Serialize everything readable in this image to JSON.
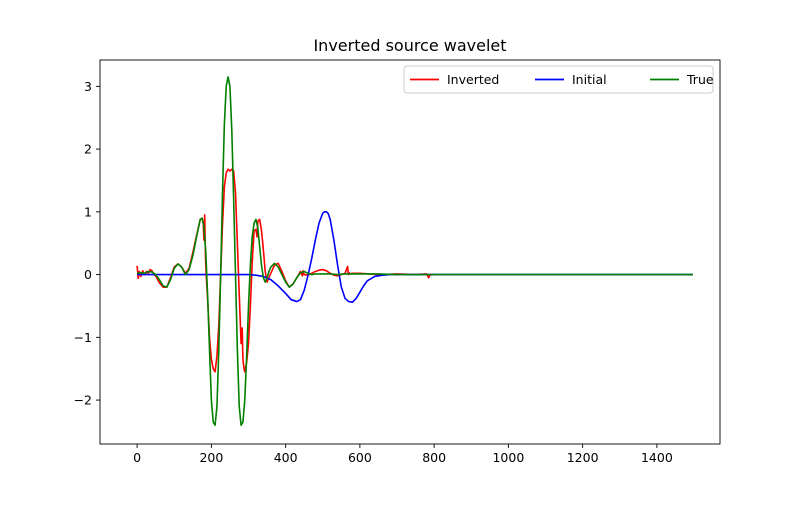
{
  "chart_data": {
    "type": "line",
    "title": "Inverted source wavelet",
    "xlabel": "",
    "ylabel": "",
    "xlim": [
      -100,
      1570
    ],
    "ylim": [
      -2.7,
      3.42
    ],
    "xticks": [
      0,
      200,
      400,
      600,
      800,
      1000,
      1200,
      1400
    ],
    "xtick_labels": [
      "0",
      "200",
      "400",
      "600",
      "800",
      "1000",
      "1200",
      "1400"
    ],
    "yticks": [
      -2,
      -1,
      0,
      1,
      2,
      3
    ],
    "ytick_labels": [
      "−2",
      "−1",
      "0",
      "1",
      "2",
      "3"
    ],
    "grid": false,
    "legend": {
      "position": "top-right",
      "columns": 3
    },
    "series": [
      {
        "name": "Inverted",
        "color": "#ff0000",
        "x": [
          0,
          3,
          6,
          10,
          15,
          20,
          25,
          30,
          35,
          40,
          45,
          50,
          60,
          70,
          80,
          90,
          100,
          110,
          120,
          130,
          140,
          150,
          160,
          170,
          175,
          178,
          180,
          182,
          184,
          186,
          190,
          195,
          200,
          205,
          210,
          215,
          220,
          225,
          230,
          235,
          240,
          245,
          250,
          255,
          260,
          265,
          270,
          275,
          280,
          283,
          285,
          288,
          290,
          295,
          300,
          305,
          310,
          315,
          320,
          323,
          325,
          330,
          335,
          340,
          345,
          350,
          360,
          370,
          380,
          390,
          400,
          410,
          420,
          430,
          440,
          445,
          447,
          450,
          460,
          470,
          480,
          490,
          500,
          510,
          520,
          530,
          540,
          550,
          560,
          567,
          569,
          571,
          573,
          580,
          600,
          650,
          700,
          750,
          780,
          785,
          790,
          800
        ],
        "y": [
          0.14,
          -0.06,
          0.05,
          -0.03,
          0.06,
          0.0,
          0.05,
          0.02,
          0.08,
          0.06,
          0.0,
          -0.02,
          -0.13,
          -0.2,
          -0.2,
          -0.05,
          0.12,
          0.17,
          0.12,
          0.02,
          0.1,
          0.35,
          0.62,
          0.88,
          0.9,
          0.82,
          0.55,
          0.95,
          0.3,
          0.0,
          -0.4,
          -1.0,
          -1.35,
          -1.5,
          -1.55,
          -1.3,
          -0.8,
          0.0,
          0.8,
          1.4,
          1.62,
          1.68,
          1.65,
          1.68,
          1.65,
          1.3,
          0.5,
          -0.3,
          -1.1,
          -0.85,
          -1.35,
          -1.5,
          -1.55,
          -1.4,
          -1.1,
          -0.5,
          0.2,
          0.7,
          0.72,
          0.6,
          0.85,
          0.88,
          0.7,
          0.4,
          0.05,
          -0.12,
          0.02,
          0.15,
          0.18,
          0.05,
          -0.1,
          -0.2,
          -0.15,
          -0.05,
          0.05,
          -0.02,
          0.06,
          0.0,
          -0.01,
          0.02,
          0.05,
          0.07,
          0.08,
          0.06,
          0.02,
          -0.01,
          -0.02,
          0.0,
          0.02,
          0.13,
          0.0,
          0.03,
          0.01,
          0.02,
          0.02,
          0.0,
          0.01,
          0.0,
          0.01,
          -0.05,
          0.0,
          0.0
        ]
      },
      {
        "name": "Initial",
        "color": "#0000ff",
        "x": [
          0,
          100,
          200,
          260,
          300,
          320,
          340,
          360,
          380,
          400,
          415,
          430,
          440,
          450,
          460,
          470,
          480,
          490,
          500,
          505,
          510,
          515,
          520,
          530,
          540,
          550,
          560,
          570,
          580,
          590,
          600,
          610,
          620,
          640,
          660,
          680,
          700,
          750,
          800,
          1000,
          1200,
          1497
        ],
        "y": [
          0,
          0,
          0,
          0,
          0,
          -0.01,
          -0.03,
          -0.08,
          -0.18,
          -0.3,
          -0.4,
          -0.43,
          -0.4,
          -0.25,
          -0.02,
          0.25,
          0.55,
          0.82,
          0.98,
          1.0,
          1.0,
          0.97,
          0.88,
          0.55,
          0.15,
          -0.2,
          -0.38,
          -0.43,
          -0.44,
          -0.38,
          -0.28,
          -0.18,
          -0.1,
          -0.03,
          -0.01,
          0,
          0,
          0,
          0,
          0,
          0,
          0
        ]
      },
      {
        "name": "True",
        "color": "#008000",
        "x": [
          0,
          10,
          20,
          30,
          40,
          50,
          60,
          70,
          80,
          90,
          100,
          110,
          120,
          130,
          140,
          150,
          160,
          170,
          175,
          180,
          185,
          190,
          195,
          200,
          205,
          210,
          215,
          220,
          225,
          230,
          235,
          240,
          245,
          250,
          255,
          260,
          265,
          270,
          275,
          280,
          285,
          290,
          295,
          300,
          305,
          310,
          315,
          320,
          325,
          330,
          335,
          340,
          345,
          350,
          355,
          360,
          370,
          380,
          390,
          400,
          410,
          420,
          430,
          440,
          450,
          460,
          470,
          480,
          490,
          500,
          520,
          540,
          560,
          580,
          600,
          650,
          700,
          800,
          1000,
          1200,
          1497
        ],
        "y": [
          0.02,
          0.03,
          0.02,
          0.05,
          0.04,
          0.0,
          -0.08,
          -0.18,
          -0.2,
          -0.08,
          0.1,
          0.17,
          0.12,
          0.0,
          0.08,
          0.3,
          0.6,
          0.88,
          0.9,
          0.75,
          0.35,
          -0.35,
          -1.2,
          -2.0,
          -2.35,
          -2.4,
          -2.1,
          -1.2,
          0.0,
          1.3,
          2.4,
          3.0,
          3.15,
          3.0,
          2.3,
          1.2,
          0.0,
          -1.2,
          -2.1,
          -2.4,
          -2.35,
          -2.0,
          -1.3,
          -0.5,
          0.15,
          0.6,
          0.82,
          0.88,
          0.75,
          0.45,
          0.15,
          -0.05,
          -0.12,
          -0.05,
          0.05,
          0.12,
          0.18,
          0.12,
          0.0,
          -0.12,
          -0.2,
          -0.15,
          -0.05,
          0.03,
          0.05,
          0.02,
          0.0,
          0.01,
          0.01,
          0.01,
          0.01,
          0.0,
          0.01,
          0.01,
          0.01,
          0.01,
          0.0,
          0.0,
          0.0,
          0.0,
          0.0
        ]
      }
    ]
  }
}
